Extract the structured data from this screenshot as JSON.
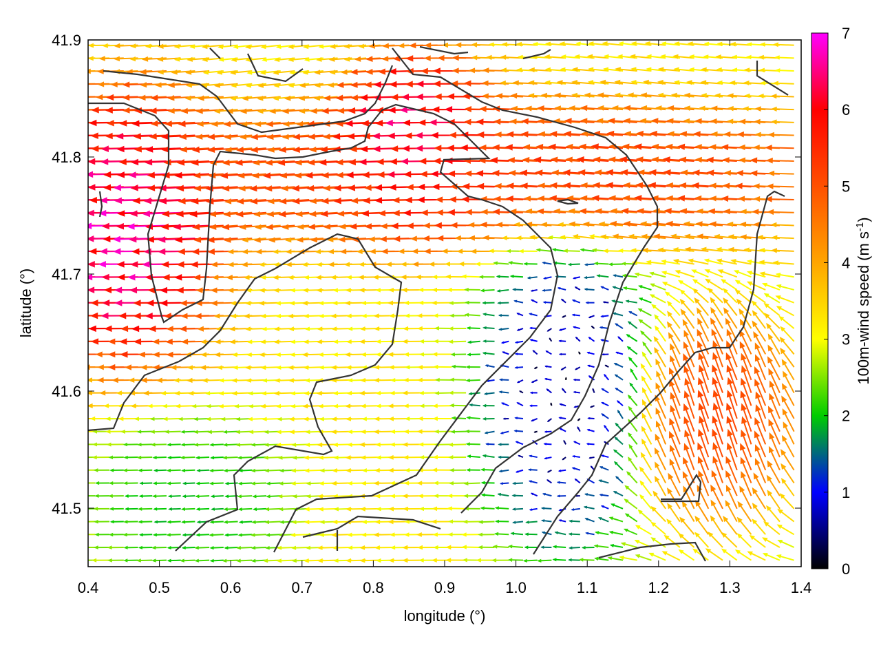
{
  "chart_data": {
    "type": "vector-field",
    "xlabel": "longitude (°)",
    "ylabel": "latitude (°)",
    "xlim": [
      0.4,
      1.4
    ],
    "ylim": [
      41.45,
      41.9
    ],
    "x_ticks": [
      "0.4",
      "0.5",
      "0.6",
      "0.7",
      "0.8",
      "0.9",
      "1.0",
      "1.1",
      "1.2",
      "1.3",
      "1.4"
    ],
    "y_ticks": [
      "41.5",
      "41.6",
      "41.7",
      "41.8",
      "41.9"
    ],
    "colorbar": {
      "label": "100m-wind speed (m s",
      "label_sup": "-1",
      "label_end": ")",
      "min": 0,
      "max": 7,
      "ticks": [
        "0",
        "1",
        "2",
        "3",
        "4",
        "5",
        "6",
        "7"
      ],
      "colors": [
        "#000000",
        "#0000ff",
        "#00cc00",
        "#ffff00",
        "#ffa500",
        "#ff5000",
        "#ff0000",
        "#ff00ff"
      ]
    },
    "grid": false,
    "vector_field": {
      "grid_step_lon": 0.02,
      "grid_step_lat": 0.011,
      "dominant_direction": "westward",
      "speed_range": [
        0,
        7
      ],
      "regions": [
        {
          "description_area": "west",
          "lon": [
            0.4,
            0.56
          ],
          "lat": [
            41.66,
            41.82
          ],
          "speed": 7,
          "direction": "west"
        },
        {
          "description_area": "northern jet",
          "lon": [
            0.55,
            1.4
          ],
          "lat": [
            41.75,
            41.82
          ],
          "speed": 5.5,
          "direction": "west"
        },
        {
          "description_area": "north-central",
          "lon": [
            0.82,
            0.95
          ],
          "lat": [
            41.77,
            41.86
          ],
          "speed": 6.8,
          "direction": "west"
        },
        {
          "description_area": "east calm",
          "lon": [
            1.0,
            1.15
          ],
          "lat": [
            41.5,
            41.7
          ],
          "speed": 0.5,
          "direction": "variable"
        },
        {
          "description_area": "south-east",
          "lon": [
            1.2,
            1.38
          ],
          "lat": [
            41.5,
            41.64
          ],
          "speed": 5.5,
          "direction": "north"
        },
        {
          "description_area": "south-west",
          "lon": [
            0.45,
            0.65
          ],
          "lat": [
            41.46,
            41.55
          ],
          "speed": 1.8,
          "direction": "west"
        }
      ]
    }
  }
}
